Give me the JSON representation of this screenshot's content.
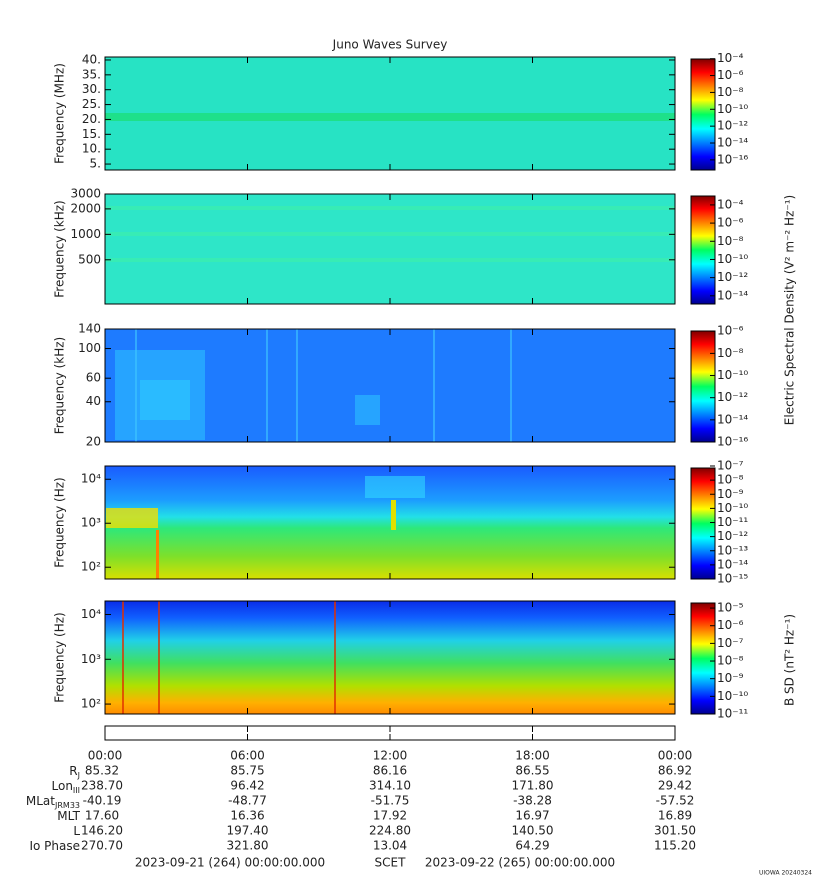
{
  "figure": {
    "title": "Juno Waves Survey",
    "electric_label": "Electric Spectral Density (V² m⁻² Hz⁻¹)",
    "magnetic_label": "B SD (nT² Hz⁻¹)",
    "start": "2023-09-21 (264) 00:00:00.000",
    "scet": "SCET",
    "end": "2023-09-22 (265) 00:00:00.000",
    "stamp": "UIOWA 20240324"
  },
  "time_axis": {
    "xlim": [
      0,
      24
    ],
    "xticks": [
      {
        "value": 0,
        "label": "00:00"
      },
      {
        "value": 6,
        "label": "06:00"
      },
      {
        "value": 12,
        "label": "12:00"
      },
      {
        "value": 18,
        "label": "18:00"
      },
      {
        "value": 24,
        "label": "00:00"
      }
    ]
  },
  "chart_data": [
    {
      "type": "spectrogram",
      "ylabel": "Frequency (MHz)",
      "log_scale": false,
      "ylim": [
        3,
        41
      ],
      "yticks": [
        {
          "value": 5,
          "label": "5."
        },
        {
          "value": 10,
          "label": "10."
        },
        {
          "value": 15,
          "label": "15."
        },
        {
          "value": 20,
          "label": "20."
        },
        {
          "value": 25,
          "label": "25."
        },
        {
          "value": 30,
          "label": "30."
        },
        {
          "value": 35,
          "label": "35."
        },
        {
          "value": 40,
          "label": "40."
        }
      ],
      "zlim": [
        -17.2,
        -3.8
      ],
      "zticks": [
        {
          "value": -4,
          "label": "10⁻⁴"
        },
        {
          "value": -6,
          "label": "10⁻⁶"
        },
        {
          "value": -8,
          "label": "10⁻⁸"
        },
        {
          "value": -10,
          "label": "10⁻¹⁰"
        },
        {
          "value": -12,
          "label": "10⁻¹²"
        },
        {
          "value": -14,
          "label": "10⁻¹⁴"
        },
        {
          "value": -16,
          "label": "10⁻¹⁶"
        }
      ]
    },
    {
      "type": "spectrogram",
      "ylabel": "Frequency (kHz)",
      "log_scale": true,
      "ylim": [
        150,
        3000
      ],
      "yticks": [
        500,
        1000,
        2000,
        3000
      ],
      "zlim": [
        -14.9,
        -2.8
      ],
      "zticks": [
        {
          "value": -4,
          "label": "10⁻⁴"
        },
        {
          "value": -6,
          "label": "10⁻⁶"
        },
        {
          "value": -8,
          "label": "10⁻⁸"
        },
        {
          "value": -10,
          "label": "10⁻¹⁰"
        },
        {
          "value": -12,
          "label": "10⁻¹²"
        },
        {
          "value": -14,
          "label": "10⁻¹⁴"
        }
      ]
    },
    {
      "type": "spectrogram",
      "ylabel": "Frequency (kHz)",
      "log_scale": true,
      "ylim": [
        20,
        140
      ],
      "yticks": [
        20,
        40,
        60,
        100,
        140
      ],
      "zlim": [
        -16,
        -5.8
      ],
      "zticks": [
        {
          "value": -6,
          "label": "10⁻⁶"
        },
        {
          "value": -8,
          "label": "10⁻⁸"
        },
        {
          "value": -10,
          "label": "10⁻¹⁰"
        },
        {
          "value": -12,
          "label": "10⁻¹²"
        },
        {
          "value": -14,
          "label": "10⁻¹⁴"
        },
        {
          "value": -16,
          "label": "10⁻¹⁶"
        }
      ]
    },
    {
      "type": "spectrogram",
      "ylabel": "Frequency (Hz)",
      "log_scale": true,
      "ylim": [
        54,
        20000
      ],
      "yticks": [
        {
          "value": 100,
          "label": "10²"
        },
        {
          "value": 1000,
          "label": "10³"
        },
        {
          "value": 10000,
          "label": "10⁴"
        }
      ],
      "zlim": [
        -15,
        -7
      ],
      "zticks": [
        {
          "value": -7,
          "label": "10⁻⁷"
        },
        {
          "value": -8,
          "label": "10⁻⁸"
        },
        {
          "value": -9,
          "label": "10⁻⁹"
        },
        {
          "value": -10,
          "label": "10⁻¹⁰"
        },
        {
          "value": -11,
          "label": "10⁻¹¹"
        },
        {
          "value": -12,
          "label": "10⁻¹²"
        },
        {
          "value": -13,
          "label": "10⁻¹³"
        },
        {
          "value": -14,
          "label": "10⁻¹⁴"
        },
        {
          "value": -15,
          "label": "10⁻¹⁵"
        }
      ]
    },
    {
      "type": "spectrogram",
      "ylabel": "Frequency (Hz)",
      "log_scale": true,
      "ylim": [
        60,
        20000
      ],
      "yticks": [
        {
          "value": 100,
          "label": "10²"
        },
        {
          "value": 1000,
          "label": "10³"
        },
        {
          "value": 10000,
          "label": "10⁴"
        }
      ],
      "zlim": [
        -11,
        -4.6
      ],
      "zticks": [
        {
          "value": -5,
          "label": "10⁻⁵"
        },
        {
          "value": -6,
          "label": "10⁻⁶"
        },
        {
          "value": -7,
          "label": "10⁻⁷"
        },
        {
          "value": -8,
          "label": "10⁻⁸"
        },
        {
          "value": -9,
          "label": "10⁻⁹"
        },
        {
          "value": -10,
          "label": "10⁻¹⁰"
        },
        {
          "value": -11,
          "label": "10⁻¹¹"
        }
      ]
    }
  ],
  "ephemeris": {
    "rows": [
      {
        "label": "R",
        "sub": "J",
        "values": [
          "85.32",
          "85.75",
          "86.16",
          "86.55",
          "86.92"
        ]
      },
      {
        "label": "Lon",
        "sub": "III",
        "values": [
          "238.70",
          "96.42",
          "314.10",
          "171.80",
          "29.42"
        ]
      },
      {
        "label": "MLat",
        "sub": "JRM33",
        "values": [
          "-40.19",
          "-48.77",
          "-51.75",
          "-38.28",
          "-57.52"
        ]
      },
      {
        "label": "MLT",
        "values": [
          "17.60",
          "16.36",
          "17.92",
          "16.97",
          "16.89"
        ]
      },
      {
        "label": "L",
        "values": [
          "146.20",
          "197.40",
          "224.80",
          "140.50",
          "301.50"
        ]
      },
      {
        "label": "Io Phase",
        "values": [
          "270.70",
          "321.80",
          "13.04",
          "64.29",
          "115.20"
        ]
      }
    ]
  }
}
